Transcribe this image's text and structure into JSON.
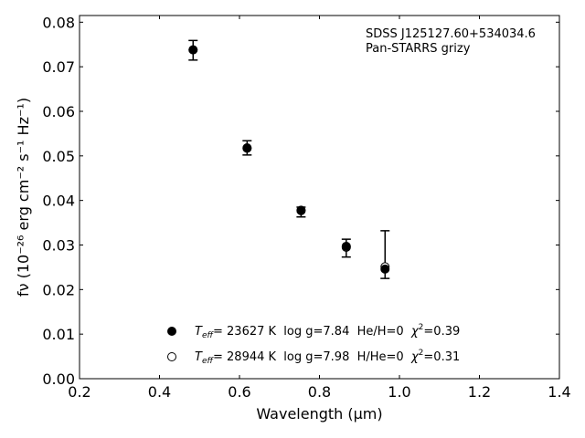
{
  "chart_data": {
    "type": "scatter",
    "title": "",
    "annotations": [
      "SDSS J125127.60+534034.6",
      "Pan-STARRS grizy"
    ],
    "xlabel": "Wavelength (μm)",
    "ylabel": "fν (10⁻²⁶ erg cm⁻² s⁻¹ Hz⁻¹)",
    "xlim": [
      0.2,
      1.4
    ],
    "ylim": [
      0.0,
      0.0815
    ],
    "xticks": [
      "0.2",
      "0.4",
      "0.6",
      "0.8",
      "1.0",
      "1.2",
      "1.4"
    ],
    "yticks": [
      "0.00",
      "0.01",
      "0.02",
      "0.03",
      "0.04",
      "0.05",
      "0.06",
      "0.07",
      "0.08"
    ],
    "grid": false,
    "legend_position": "bottom-center",
    "observed": {
      "x": [
        0.484,
        0.619,
        0.754,
        0.867,
        0.964
      ],
      "y": [
        0.0737,
        0.0518,
        0.0375,
        0.0293,
        0.025
      ],
      "yerr_low": [
        0.0022,
        0.0016,
        0.0012,
        0.002,
        0.0025
      ],
      "yerr_high": [
        0.0022,
        0.0016,
        0.001,
        0.002,
        0.0082
      ]
    },
    "series": [
      {
        "name": "T_eff= 23627 K  log g=7.84  He/H=0  χ²=0.39",
        "marker": "filled",
        "x": [
          0.484,
          0.619,
          0.754,
          0.867,
          0.964
        ],
        "y": [
          0.0738,
          0.0517,
          0.0378,
          0.0297,
          0.0246
        ]
      },
      {
        "name": "T_eff= 28944 K  log g=7.98  H/He=0  χ²=0.31",
        "marker": "open",
        "x": [
          0.484,
          0.619,
          0.754,
          0.867,
          0.964
        ],
        "y": [
          0.0738,
          0.0518,
          0.0377,
          0.0295,
          0.0251
        ]
      }
    ],
    "legend": [
      {
        "prefix_main": "T",
        "prefix_sub": "eff",
        "text": "= 23627 K  log g=7.84  He/H=0  ",
        "chi": "χ",
        "chi_sup": "2",
        "chi_val": "=0.39"
      },
      {
        "prefix_main": "T",
        "prefix_sub": "eff",
        "text": "= 28944 K  log g=7.98  H/He=0  ",
        "chi": "χ",
        "chi_sup": "2",
        "chi_val": "=0.31"
      }
    ]
  }
}
